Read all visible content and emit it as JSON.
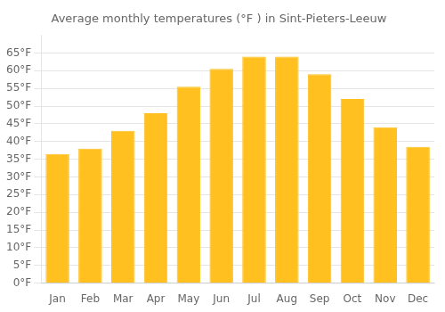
{
  "chart_data": {
    "type": "bar",
    "title": "Average monthly temperatures (°F ) in Sint-Pieters-Leeuw",
    "categories": [
      "Jan",
      "Feb",
      "Mar",
      "Apr",
      "May",
      "Jun",
      "Jul",
      "Aug",
      "Sep",
      "Oct",
      "Nov",
      "Dec"
    ],
    "values": [
      36.5,
      38,
      43,
      48,
      55.5,
      60.5,
      64,
      64,
      59,
      52,
      44,
      38.5
    ],
    "color": "#FFC020",
    "ylim": [
      0,
      70
    ],
    "yticks": [
      {
        "value": 0,
        "label": "0°F"
      },
      {
        "value": 5,
        "label": "5°F"
      },
      {
        "value": 10,
        "label": "10°F"
      },
      {
        "value": 15,
        "label": "15°F"
      },
      {
        "value": 20,
        "label": "20°F"
      },
      {
        "value": 25,
        "label": "25°F"
      },
      {
        "value": 30,
        "label": "30°F"
      },
      {
        "value": 35,
        "label": "35°F"
      },
      {
        "value": 40,
        "label": "40°F"
      },
      {
        "value": 45,
        "label": "45°F"
      },
      {
        "value": 50,
        "label": "50°F"
      },
      {
        "value": 55,
        "label": "55°F"
      },
      {
        "value": 60,
        "label": "60°F"
      },
      {
        "value": 65,
        "label": "65°F"
      }
    ],
    "grid": true
  }
}
